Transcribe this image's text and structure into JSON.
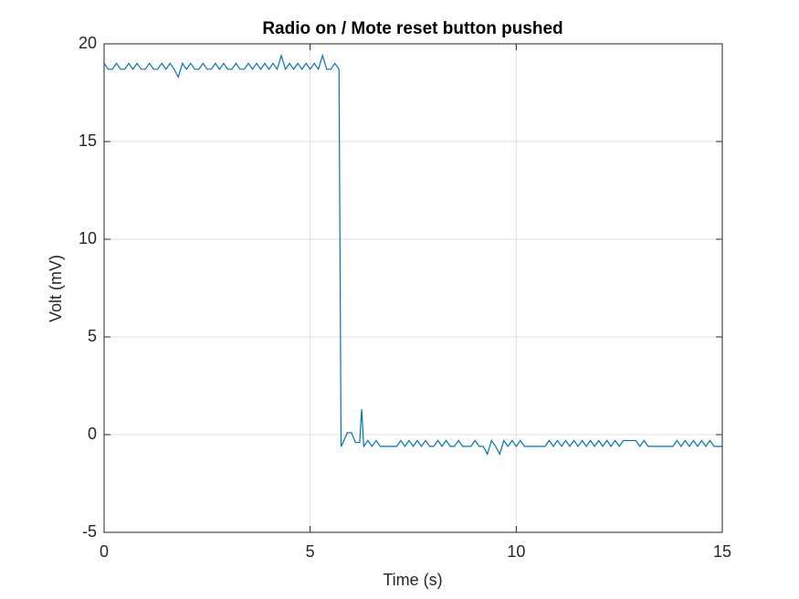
{
  "chart_data": {
    "type": "line",
    "title": "Radio on / Mote reset button pushed",
    "xlabel": "Time (s)",
    "ylabel": "Volt (mV)",
    "xlim": [
      0,
      15
    ],
    "ylim": [
      -5,
      20
    ],
    "xticks": [
      0,
      5,
      10,
      15
    ],
    "yticks": [
      -5,
      0,
      5,
      10,
      15,
      20
    ],
    "grid": true,
    "x": [
      0,
      0.1,
      0.2,
      0.3,
      0.4,
      0.5,
      0.6,
      0.7,
      0.8,
      0.9,
      1.0,
      1.1,
      1.2,
      1.3,
      1.4,
      1.5,
      1.6,
      1.7,
      1.8,
      1.9,
      2.0,
      2.1,
      2.2,
      2.3,
      2.4,
      2.5,
      2.6,
      2.7,
      2.8,
      2.9,
      3.0,
      3.1,
      3.2,
      3.3,
      3.4,
      3.5,
      3.6,
      3.7,
      3.8,
      3.9,
      4.0,
      4.1,
      4.2,
      4.3,
      4.4,
      4.5,
      4.6,
      4.7,
      4.8,
      4.9,
      5.0,
      5.1,
      5.2,
      5.3,
      5.4,
      5.5,
      5.6,
      5.7,
      5.75,
      5.8,
      5.9,
      6.0,
      6.1,
      6.2,
      6.25,
      6.3,
      6.4,
      6.5,
      6.6,
      6.7,
      6.8,
      6.9,
      7.0,
      7.1,
      7.2,
      7.3,
      7.4,
      7.5,
      7.6,
      7.7,
      7.8,
      7.9,
      8.0,
      8.1,
      8.2,
      8.3,
      8.4,
      8.5,
      8.6,
      8.7,
      8.8,
      8.9,
      9.0,
      9.1,
      9.2,
      9.3,
      9.4,
      9.5,
      9.6,
      9.7,
      9.8,
      9.9,
      10.0,
      10.1,
      10.2,
      10.3,
      10.4,
      10.5,
      10.6,
      10.7,
      10.8,
      10.9,
      11.0,
      11.1,
      11.2,
      11.3,
      11.4,
      11.5,
      11.6,
      11.7,
      11.8,
      11.9,
      12.0,
      12.1,
      12.2,
      12.3,
      12.4,
      12.5,
      12.6,
      12.7,
      12.8,
      12.9,
      13.0,
      13.1,
      13.2,
      13.3,
      13.4,
      13.5,
      13.6,
      13.7,
      13.8,
      13.9,
      14.0,
      14.1,
      14.2,
      14.3,
      14.4,
      14.5,
      14.6,
      14.7,
      14.8,
      14.9,
      15.0
    ],
    "series": [
      {
        "name": "Volt",
        "color": "#0072bd",
        "values": [
          19.0,
          18.7,
          18.7,
          19.0,
          18.7,
          18.7,
          19.0,
          18.7,
          19.0,
          18.7,
          18.7,
          19.0,
          18.7,
          18.7,
          19.0,
          18.7,
          19.0,
          18.7,
          18.3,
          19.0,
          18.7,
          19.0,
          18.7,
          18.7,
          19.0,
          18.7,
          18.7,
          19.0,
          18.7,
          19.0,
          18.7,
          18.7,
          19.0,
          18.7,
          18.7,
          19.0,
          18.7,
          19.0,
          18.7,
          19.0,
          18.7,
          19.0,
          18.7,
          19.4,
          18.7,
          19.0,
          18.7,
          19.0,
          18.7,
          19.0,
          18.7,
          19.0,
          18.7,
          19.4,
          18.7,
          18.7,
          19.0,
          18.7,
          -0.6,
          -0.4,
          0.1,
          0.1,
          -0.4,
          -0.4,
          1.3,
          -0.6,
          -0.3,
          -0.6,
          -0.3,
          -0.6,
          -0.6,
          -0.6,
          -0.6,
          -0.6,
          -0.3,
          -0.6,
          -0.3,
          -0.6,
          -0.3,
          -0.6,
          -0.3,
          -0.6,
          -0.6,
          -0.3,
          -0.6,
          -0.3,
          -0.6,
          -0.6,
          -0.3,
          -0.6,
          -0.6,
          -0.6,
          -0.3,
          -0.6,
          -0.6,
          -1.0,
          -0.3,
          -0.6,
          -1.0,
          -0.3,
          -0.6,
          -0.3,
          -0.6,
          -0.3,
          -0.6,
          -0.6,
          -0.6,
          -0.6,
          -0.6,
          -0.6,
          -0.3,
          -0.6,
          -0.3,
          -0.6,
          -0.3,
          -0.6,
          -0.3,
          -0.6,
          -0.3,
          -0.6,
          -0.3,
          -0.6,
          -0.3,
          -0.6,
          -0.3,
          -0.6,
          -0.3,
          -0.6,
          -0.3,
          -0.3,
          -0.3,
          -0.3,
          -0.6,
          -0.3,
          -0.6,
          -0.6,
          -0.6,
          -0.6,
          -0.6,
          -0.6,
          -0.6,
          -0.3,
          -0.6,
          -0.3,
          -0.6,
          -0.3,
          -0.6,
          -0.3,
          -0.6,
          -0.3,
          -0.6,
          -0.6,
          -0.6
        ]
      }
    ]
  }
}
